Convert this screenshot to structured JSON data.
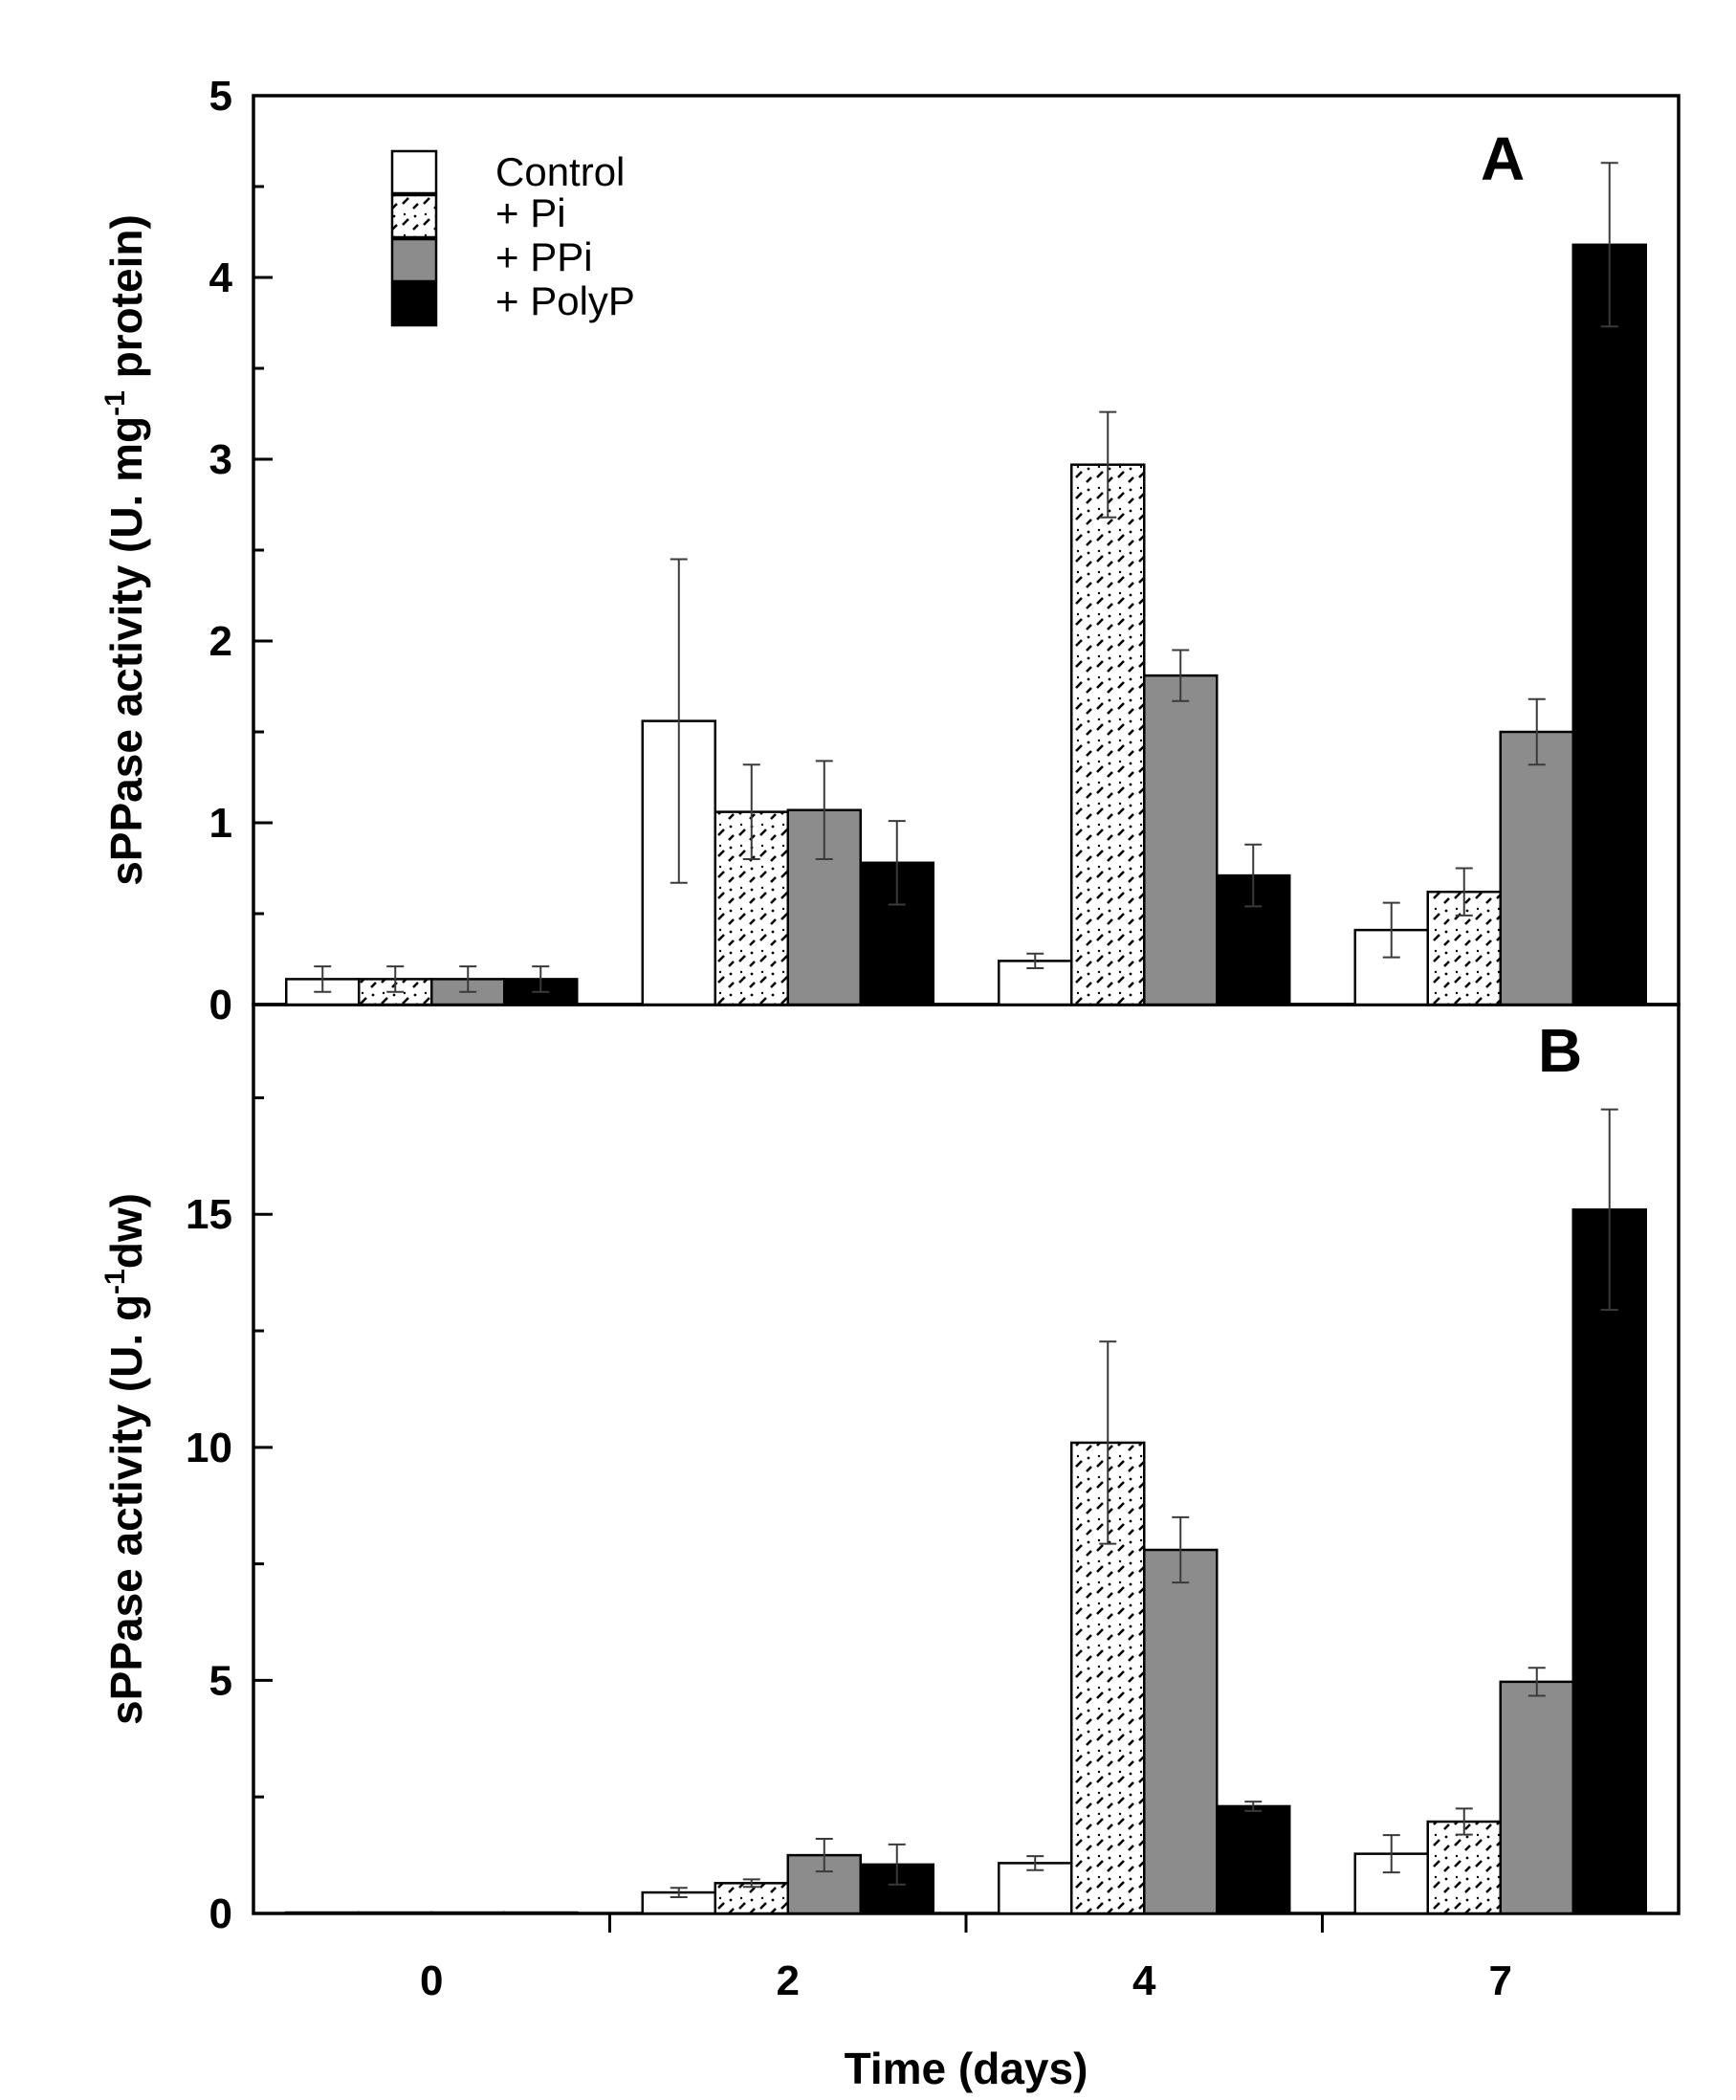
{
  "chart_data": [
    {
      "panel": "A",
      "type": "bar",
      "ylabel": "sPPase activity (U. mg-1 protein)",
      "ylabel_parts": [
        "sPPase activity (U.  mg",
        "-1",
        " protein)"
      ],
      "ylim": [
        0,
        5
      ],
      "yticks": [
        0,
        1,
        2,
        3,
        4,
        5
      ],
      "categories": [
        "0",
        "2",
        "4",
        "7"
      ],
      "series": [
        {
          "name": "Control",
          "values": [
            0.14,
            1.56,
            0.24,
            0.41
          ],
          "errors": [
            0.07,
            0.89,
            0.04,
            0.15
          ]
        },
        {
          "name": "+ Pi",
          "values": [
            0.14,
            1.06,
            2.97,
            0.62
          ],
          "errors": [
            0.07,
            0.26,
            0.29,
            0.13
          ]
        },
        {
          "name": "+ PPi",
          "values": [
            0.14,
            1.07,
            1.81,
            1.5
          ],
          "errors": [
            0.07,
            0.27,
            0.14,
            0.18
          ]
        },
        {
          "name": "+ PolyP",
          "values": [
            0.14,
            0.78,
            0.71,
            4.18
          ],
          "errors": [
            0.07,
            0.23,
            0.17,
            0.45
          ]
        }
      ]
    },
    {
      "panel": "B",
      "type": "bar",
      "ylabel": "sPPase activity (U. g-1dw)",
      "ylabel_parts": [
        "sPPase activity (U. g",
        "-1",
        "dw)"
      ],
      "ylim": [
        0,
        19.5
      ],
      "yticks": [
        0,
        5,
        10,
        15
      ],
      "xlabel": "Time (days)",
      "categories": [
        "0",
        "2",
        "4",
        "7"
      ],
      "series": [
        {
          "name": "Control",
          "values": [
            0.02,
            0.45,
            1.08,
            1.28
          ],
          "errors": [
            0,
            0.1,
            0.15,
            0.4
          ]
        },
        {
          "name": "+ Pi",
          "values": [
            0.02,
            0.65,
            10.1,
            1.97
          ],
          "errors": [
            0,
            0.08,
            2.17,
            0.28
          ]
        },
        {
          "name": "+ PPi",
          "values": [
            0.02,
            1.25,
            7.8,
            4.97
          ],
          "errors": [
            0,
            0.35,
            0.7,
            0.3
          ]
        },
        {
          "name": "+ PolyP",
          "values": [
            0.02,
            1.05,
            2.3,
            15.1
          ],
          "errors": [
            0,
            0.43,
            0.1,
            2.15
          ]
        }
      ]
    }
  ],
  "legend": {
    "entries": [
      {
        "label": "Control",
        "style": "white"
      },
      {
        "label": "+ Pi",
        "style": "hatch"
      },
      {
        "label": "+ PPi",
        "style": "gray"
      },
      {
        "label": "+ PolyP",
        "style": "black"
      }
    ],
    "placement": "top-left of panel A"
  },
  "colors": {
    "white": "#ffffff",
    "gray": "#8c8c8c",
    "black": "#000000",
    "hatch_bg": "#ffffff",
    "hatch_fg": "#000000"
  }
}
